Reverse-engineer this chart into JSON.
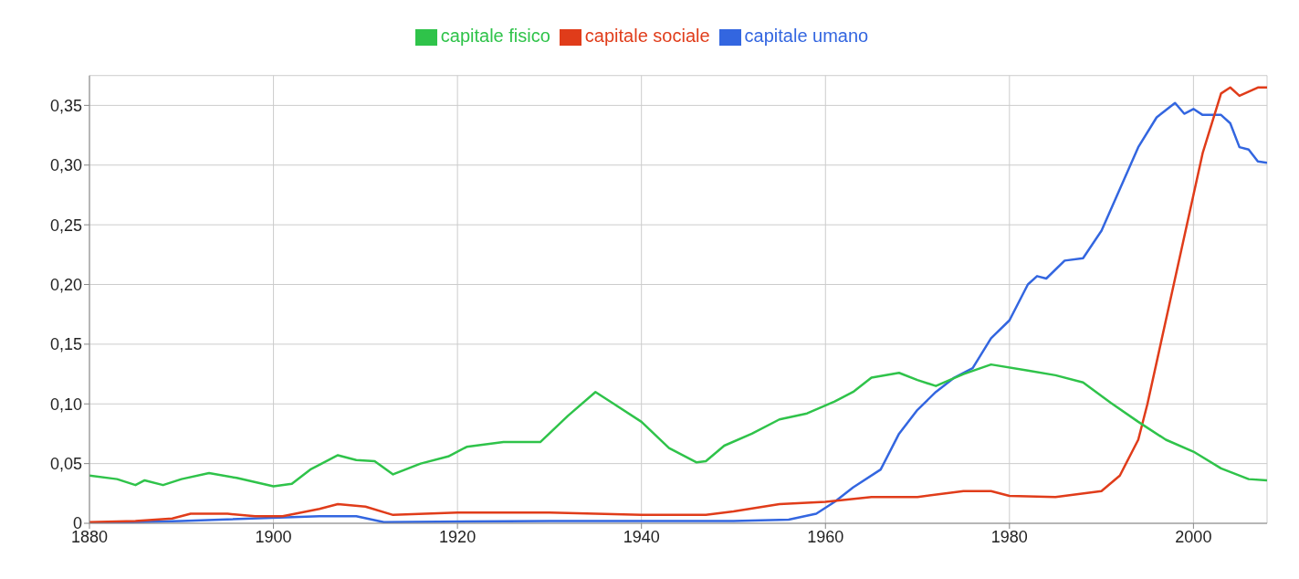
{
  "chart_data": {
    "type": "line",
    "legend": "top",
    "grid": true,
    "marker": "none",
    "line_style": "solid",
    "xlim": [
      1880,
      2008
    ],
    "xticks": [
      1880,
      1900,
      1920,
      1940,
      1960,
      1980,
      2000
    ],
    "ylim": [
      0,
      0.375
    ],
    "yticks": [
      0,
      {
        "value": 0.05,
        "label": "0,05"
      },
      {
        "value": 0.1,
        "label": "0,10"
      },
      {
        "value": 0.15,
        "label": "0,15"
      },
      {
        "value": 0.2,
        "label": "0,20"
      },
      {
        "value": 0.25,
        "label": "0,25"
      },
      {
        "value": 0.3,
        "label": "0,30"
      },
      {
        "value": 0.35,
        "label": "0,35"
      }
    ],
    "series": [
      {
        "name": "capitale umano",
        "color": "#3366e0",
        "x": [
          1880,
          1890,
          1905,
          1909,
          1912,
          1930,
          1950,
          1956,
          1959,
          1961,
          1963,
          1966,
          1968,
          1970,
          1972,
          1974,
          1976,
          1978,
          1980,
          1982,
          1983,
          1984,
          1986,
          1988,
          1990,
          1992,
          1994,
          1996,
          1998,
          1999,
          2000,
          2001,
          2003,
          2004,
          2005,
          2006,
          2007,
          2008
        ],
        "values": [
          0,
          0.002,
          0.006,
          0.006,
          0.001,
          0.002,
          0.002,
          0.003,
          0.008,
          0.018,
          0.03,
          0.045,
          0.075,
          0.095,
          0.11,
          0.122,
          0.13,
          0.155,
          0.17,
          0.2,
          0.207,
          0.205,
          0.22,
          0.222,
          0.245,
          0.28,
          0.315,
          0.34,
          0.352,
          0.343,
          0.347,
          0.342,
          0.342,
          0.335,
          0.315,
          0.313,
          0.303,
          0.302
        ]
      },
      {
        "name": "capitale sociale",
        "color": "#e03c1a",
        "x": [
          1880,
          1885,
          1889,
          1891,
          1895,
          1898,
          1901,
          1905,
          1907,
          1910,
          1913,
          1920,
          1930,
          1940,
          1947,
          1950,
          1955,
          1960,
          1965,
          1970,
          1975,
          1978,
          1980,
          1985,
          1990,
          1992,
          1994,
          1995,
          1997,
          1999,
          2001,
          2003,
          2004,
          2005,
          2007,
          2008
        ],
        "values": [
          0.001,
          0.002,
          0.004,
          0.008,
          0.008,
          0.006,
          0.006,
          0.012,
          0.016,
          0.014,
          0.007,
          0.009,
          0.009,
          0.007,
          0.007,
          0.01,
          0.016,
          0.018,
          0.022,
          0.022,
          0.027,
          0.027,
          0.023,
          0.022,
          0.027,
          0.04,
          0.07,
          0.1,
          0.17,
          0.24,
          0.31,
          0.36,
          0.365,
          0.358,
          0.365,
          0.365
        ]
      },
      {
        "name": "capitale fisico",
        "color": "#2fc34a",
        "x": [
          1880,
          1883,
          1885,
          1886,
          1888,
          1890,
          1893,
          1896,
          1900,
          1902,
          1904,
          1907,
          1909,
          1911,
          1913,
          1916,
          1919,
          1921,
          1925,
          1929,
          1932,
          1935,
          1937,
          1940,
          1943,
          1946,
          1947,
          1949,
          1952,
          1955,
          1958,
          1961,
          1963,
          1965,
          1968,
          1970,
          1972,
          1975,
          1978,
          1982,
          1985,
          1988,
          1991,
          1994,
          1997,
          2000,
          2003,
          2006,
          2008
        ],
        "values": [
          0.04,
          0.037,
          0.032,
          0.036,
          0.032,
          0.037,
          0.042,
          0.038,
          0.031,
          0.033,
          0.045,
          0.057,
          0.053,
          0.052,
          0.041,
          0.05,
          0.056,
          0.064,
          0.068,
          0.068,
          0.09,
          0.11,
          0.1,
          0.085,
          0.063,
          0.051,
          0.052,
          0.065,
          0.075,
          0.087,
          0.092,
          0.102,
          0.11,
          0.122,
          0.126,
          0.12,
          0.115,
          0.125,
          0.133,
          0.128,
          0.124,
          0.118,
          0.101,
          0.085,
          0.07,
          0.06,
          0.046,
          0.037,
          0.036
        ]
      }
    ]
  }
}
